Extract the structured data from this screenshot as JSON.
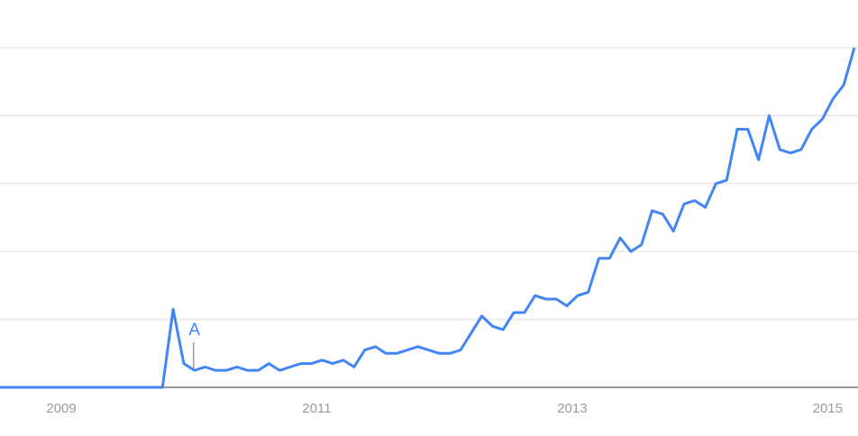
{
  "chart_data": {
    "type": "line",
    "title": "",
    "xlabel": "",
    "ylabel": "",
    "ylim": [
      0,
      100
    ],
    "grid": true,
    "y_gridlines": [
      20,
      40,
      60,
      80,
      100
    ],
    "x_tick_labels": [
      "2009",
      "2011",
      "2013",
      "2015"
    ],
    "line_color": "#4285f4",
    "axis_color": "#999999",
    "grid_color": "#e8e8e8",
    "x": [
      "2008-07",
      "2008-08",
      "2008-09",
      "2008-10",
      "2008-11",
      "2008-12",
      "2009-01",
      "2009-02",
      "2009-03",
      "2009-04",
      "2009-05",
      "2009-06",
      "2009-07",
      "2009-08",
      "2009-09",
      "2009-10",
      "2009-11",
      "2009-12",
      "2010-01",
      "2010-02",
      "2010-03",
      "2010-04",
      "2010-05",
      "2010-06",
      "2010-07",
      "2010-08",
      "2010-09",
      "2010-10",
      "2010-11",
      "2010-12",
      "2011-01",
      "2011-02",
      "2011-03",
      "2011-04",
      "2011-05",
      "2011-06",
      "2011-07",
      "2011-08",
      "2011-09",
      "2011-10",
      "2011-11",
      "2011-12",
      "2012-01",
      "2012-02",
      "2012-03",
      "2012-04",
      "2012-05",
      "2012-06",
      "2012-07",
      "2012-08",
      "2012-09",
      "2012-10",
      "2012-11",
      "2012-12",
      "2013-01",
      "2013-02",
      "2013-03",
      "2013-04",
      "2013-05",
      "2013-06",
      "2013-07",
      "2013-08",
      "2013-09",
      "2013-10",
      "2013-11",
      "2013-12",
      "2014-01",
      "2014-02",
      "2014-03",
      "2014-04",
      "2014-05",
      "2014-06",
      "2014-07",
      "2014-08",
      "2014-09",
      "2014-10",
      "2014-11",
      "2014-12",
      "2015-01",
      "2015-02",
      "2015-03"
    ],
    "series": [
      {
        "values": [
          0,
          0,
          0,
          0,
          0,
          0,
          0,
          0,
          0,
          0,
          0,
          0,
          0,
          0,
          0,
          0,
          23,
          7,
          5,
          6,
          5,
          5,
          6,
          5,
          5,
          7,
          5,
          6,
          7,
          7,
          8,
          7,
          8,
          6,
          11,
          12,
          10,
          10,
          11,
          12,
          11,
          10,
          10,
          11,
          16,
          21,
          18,
          17,
          22,
          22,
          27,
          26,
          26,
          24,
          27,
          28,
          38,
          38,
          44,
          40,
          42,
          52,
          51,
          46,
          54,
          55,
          53,
          60,
          61,
          76,
          76,
          67,
          80,
          70,
          69,
          70,
          76,
          79,
          85,
          89,
          100
        ]
      }
    ],
    "annotations": [
      {
        "label": "A",
        "x": "2009-12"
      }
    ]
  }
}
